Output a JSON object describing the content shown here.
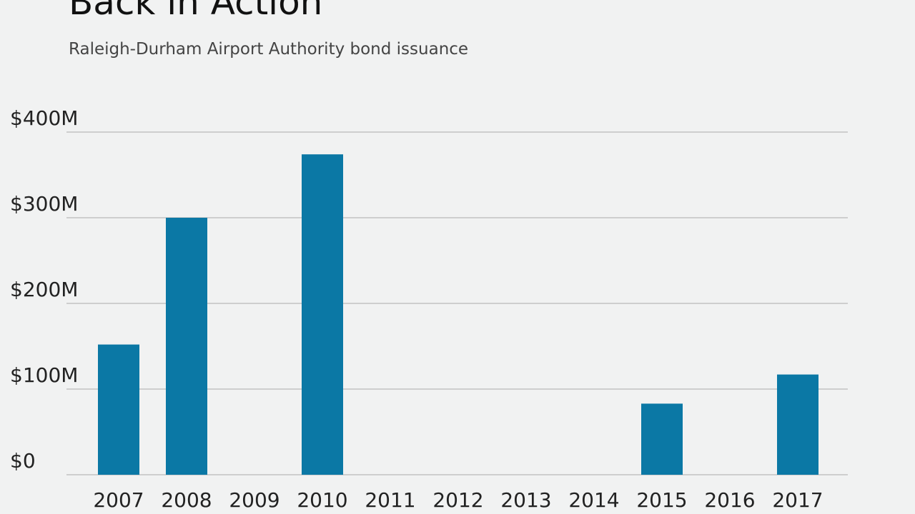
{
  "header": {
    "title": "Back in Action",
    "subtitle": "Raleigh-Durham Airport Authority bond issuance"
  },
  "colors": {
    "background": "#f1f2f2",
    "bar": "#0b78a5",
    "gridline": "#c2c2c2",
    "text": "#222222"
  },
  "chart_data": {
    "type": "bar",
    "title": "Back in Action",
    "subtitle": "Raleigh-Durham Airport Authority bond issuance",
    "xlabel": "",
    "ylabel": "",
    "categories": [
      "2007",
      "2008",
      "2009",
      "2010",
      "2011",
      "2012",
      "2013",
      "2014",
      "2015",
      "2016",
      "2017"
    ],
    "values": [
      152,
      300,
      0,
      374,
      0,
      0,
      0,
      0,
      83,
      0,
      117
    ],
    "unit": "M USD",
    "ylim": [
      0,
      400
    ],
    "yticks": [
      0,
      100,
      200,
      300,
      400
    ],
    "ytick_labels": [
      "$0",
      "$100M",
      "$200M",
      "$300M",
      "$400M"
    ],
    "grid": true,
    "legend": "none"
  }
}
